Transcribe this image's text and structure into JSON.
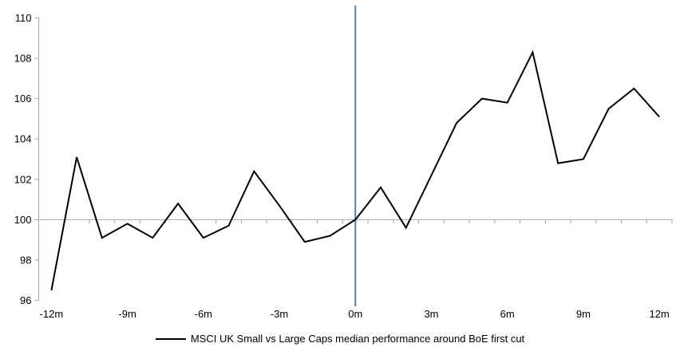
{
  "chart_data": {
    "type": "line",
    "title": "",
    "xlabel": "",
    "ylabel": "",
    "x_months": [
      -12,
      -11,
      -10,
      -9,
      -8,
      -7,
      -6,
      -5,
      -4,
      -3,
      -2,
      -1,
      0,
      1,
      2,
      3,
      4,
      5,
      6,
      7,
      8,
      9,
      10,
      11,
      12
    ],
    "series": [
      {
        "name": "MSCI UK Small vs Large Caps median performance around BoE first cut",
        "color": "#000000",
        "values": [
          96.5,
          103.1,
          99.1,
          99.8,
          99.1,
          100.8,
          99.1,
          99.7,
          102.4,
          100.7,
          98.9,
          99.2,
          100.0,
          101.6,
          99.6,
          102.2,
          104.8,
          106.0,
          105.8,
          108.3,
          102.8,
          103.0,
          105.5,
          106.5,
          105.1
        ]
      }
    ],
    "x_tick_labels": [
      "-12m",
      "-9m",
      "-6m",
      "-3m",
      "0m",
      "3m",
      "6m",
      "9m",
      "12m"
    ],
    "x_tick_months": [
      -12,
      -9,
      -6,
      -3,
      0,
      3,
      6,
      9,
      12
    ],
    "y_tick_labels": [
      "96",
      "98",
      "100",
      "102",
      "104",
      "106",
      "108",
      "110"
    ],
    "y_ticks": [
      96,
      98,
      100,
      102,
      104,
      106,
      108,
      110
    ],
    "ylim": [
      96,
      110
    ],
    "xlim_months": [
      -12,
      12
    ],
    "baseline_value": 100,
    "grid": "off",
    "legend_position": "bottom-center",
    "event_line": {
      "at_month": 0,
      "color": "#4f81bd"
    },
    "axis_color": "#a6a6a6",
    "legend": {
      "label": "MSCI UK Small vs Large Caps median performance around BoE first cut"
    }
  }
}
